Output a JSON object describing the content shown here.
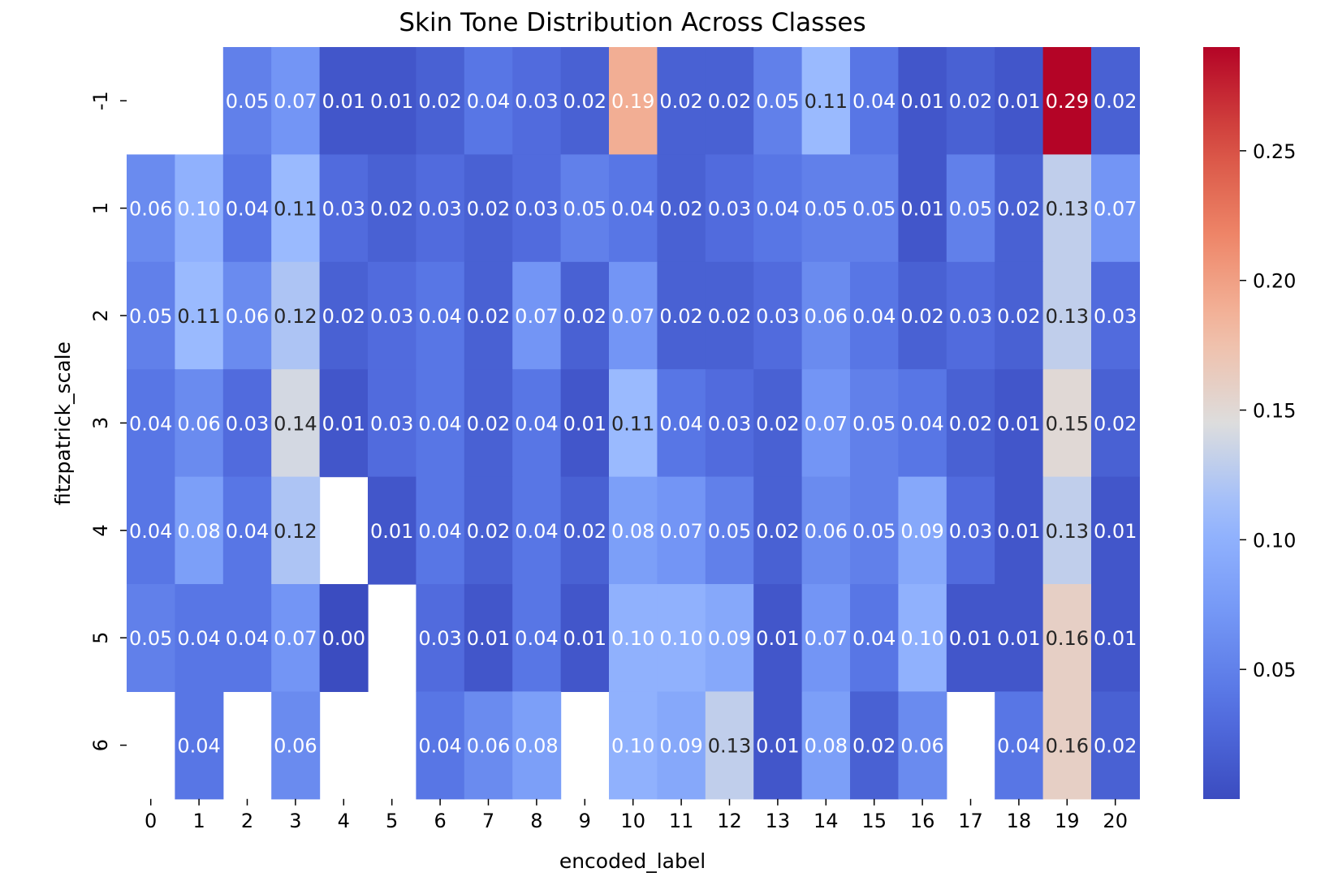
{
  "chart_data": {
    "type": "heatmap",
    "title": "Skin Tone Distribution Across Classes",
    "xlabel": "encoded_label",
    "ylabel": "fitzpatrick_scale",
    "x_categories": [
      "0",
      "1",
      "2",
      "3",
      "4",
      "5",
      "6",
      "7",
      "8",
      "9",
      "10",
      "11",
      "12",
      "13",
      "14",
      "15",
      "16",
      "17",
      "18",
      "19",
      "20"
    ],
    "y_categories": [
      "-1",
      "1",
      "2",
      "3",
      "4",
      "5",
      "6"
    ],
    "colormap": "coolwarm",
    "color_range": [
      0.0,
      0.29
    ],
    "colorbar_ticks": [
      "0.05",
      "0.10",
      "0.15",
      "0.20",
      "0.25"
    ],
    "colorbar_tick_values": [
      0.05,
      0.1,
      0.15,
      0.2,
      0.25
    ],
    "values": [
      [
        null,
        null,
        0.05,
        0.07,
        0.01,
        0.01,
        0.02,
        0.04,
        0.03,
        0.02,
        0.19,
        0.02,
        0.02,
        0.05,
        0.11,
        0.04,
        0.01,
        0.02,
        0.01,
        0.29,
        0.02
      ],
      [
        0.06,
        0.1,
        0.04,
        0.11,
        0.03,
        0.02,
        0.03,
        0.02,
        0.03,
        0.05,
        0.04,
        0.02,
        0.03,
        0.04,
        0.05,
        0.05,
        0.01,
        0.05,
        0.02,
        0.13,
        0.07
      ],
      [
        0.05,
        0.11,
        0.06,
        0.12,
        0.02,
        0.03,
        0.04,
        0.02,
        0.07,
        0.02,
        0.07,
        0.02,
        0.02,
        0.03,
        0.06,
        0.04,
        0.02,
        0.03,
        0.02,
        0.13,
        0.03
      ],
      [
        0.04,
        0.06,
        0.03,
        0.14,
        0.01,
        0.03,
        0.04,
        0.02,
        0.04,
        0.01,
        0.11,
        0.04,
        0.03,
        0.02,
        0.07,
        0.05,
        0.04,
        0.02,
        0.01,
        0.15,
        0.02
      ],
      [
        0.04,
        0.08,
        0.04,
        0.12,
        null,
        0.01,
        0.04,
        0.02,
        0.04,
        0.02,
        0.08,
        0.07,
        0.05,
        0.02,
        0.06,
        0.05,
        0.09,
        0.03,
        0.01,
        0.13,
        0.01
      ],
      [
        0.05,
        0.04,
        0.04,
        0.07,
        0.0,
        null,
        0.03,
        0.01,
        0.04,
        0.01,
        0.1,
        0.1,
        0.09,
        0.01,
        0.07,
        0.04,
        0.1,
        0.01,
        0.01,
        0.16,
        0.01
      ],
      [
        null,
        0.04,
        null,
        0.06,
        null,
        null,
        0.04,
        0.06,
        0.08,
        null,
        0.1,
        0.09,
        0.13,
        0.01,
        0.08,
        0.02,
        0.06,
        null,
        0.04,
        0.16,
        0.02
      ]
    ]
  }
}
